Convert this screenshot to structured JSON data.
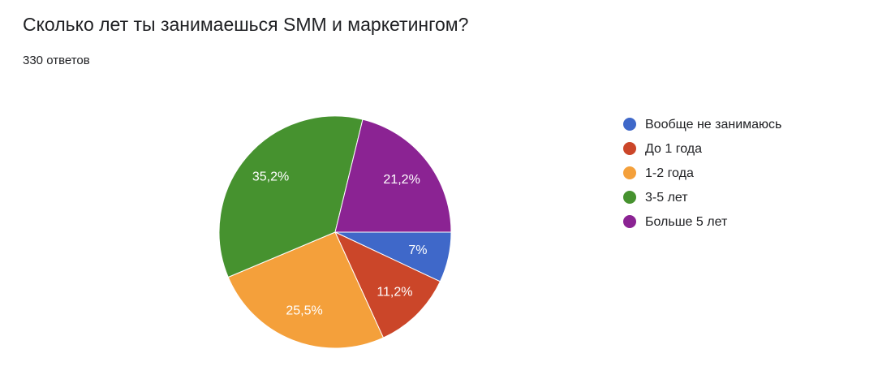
{
  "chart_data": {
    "type": "pie",
    "title": "Сколько лет ты занимаешься SMM и маркетингом?",
    "subtitle": "330 ответов",
    "categories": [
      "Вообще не занимаюсь",
      "До 1 года",
      "1-2 года",
      "3-5 лет",
      "Больше 5 лет"
    ],
    "values": [
      7,
      11.2,
      25.5,
      35.2,
      21.2
    ],
    "value_labels": [
      "7%",
      "11,2%",
      "25,5%",
      "35,2%",
      "21,2%"
    ],
    "colors": [
      "#3f68c9",
      "#cb4629",
      "#f4a03b",
      "#46922f",
      "#8b2393"
    ],
    "legend": "right"
  }
}
